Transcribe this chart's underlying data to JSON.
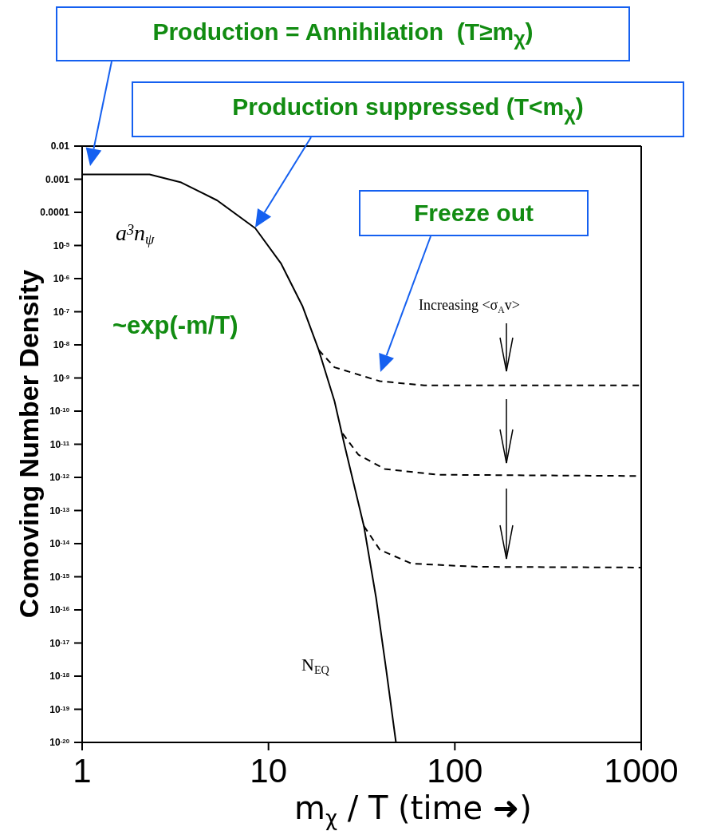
{
  "chart_data": {
    "type": "line",
    "xlabel": "m$_{χ}$ / T (time ➜)",
    "ylabel": "Comoving Number Density",
    "log": "xy",
    "marker": "none",
    "xlim": [
      1,
      1000
    ],
    "xticks": [
      1,
      10,
      100,
      1000
    ],
    "ylim": [
      1e-20,
      0.01
    ],
    "yticks": [
      0.01,
      0.001,
      0.0001,
      {
        "value": 1e-05,
        "label": "10$^{-5}$"
      },
      {
        "value": 1e-06,
        "label": "10$^{-6}$"
      },
      {
        "value": 1e-07,
        "label": "10$^{-7}$"
      },
      {
        "value": 1e-08,
        "label": "10$^{-8}$"
      },
      {
        "value": 1e-09,
        "label": "10$^{-9}$"
      },
      {
        "value": 1e-10,
        "label": "10$^{-10}$"
      },
      {
        "value": 1e-11,
        "label": "10$^{-11}$"
      },
      {
        "value": 1e-12,
        "label": "10$^{-12}$"
      },
      {
        "value": 1e-13,
        "label": "10$^{-13}$"
      },
      {
        "value": 1e-14,
        "label": "10$^{-14}$"
      },
      {
        "value": 1e-15,
        "label": "10$^{-15}$"
      },
      {
        "value": 1e-16,
        "label": "10$^{-16}$"
      },
      {
        "value": 1e-17,
        "label": "10$^{-17}$"
      },
      {
        "value": 1e-18,
        "label": "10$^{-18}$"
      },
      {
        "value": 1e-19,
        "label": "10$^{-19}$"
      },
      {
        "value": 1e-20,
        "label": "10$^{-20}$"
      }
    ],
    "series": [
      {
        "name": "N$_{EQ}$",
        "color": "#000000",
        "line_style": "solid",
        "x": [
          1,
          2.3,
          3.4,
          5.3,
          8.5,
          11.7,
          15.2,
          18.6,
          22.6,
          25.7,
          32.5,
          37.8,
          42.8,
          48.3
        ],
        "values": [
          0.0014,
          0.0014,
          0.0008,
          0.00023,
          3.3e-05,
          2.8e-06,
          1.5e-07,
          7e-09,
          2e-10,
          8.5e-12,
          3.4e-14,
          2.3e-16,
          1.6e-18,
          1e-20
        ]
      },
      {
        "color": "#000000",
        "line_style": "dashed",
        "x": [
          18.6,
          22.6,
          39.6,
          68.5,
          1000
        ],
        "values": [
          7e-09,
          2.1e-09,
          8e-10,
          6e-10,
          6e-10
        ]
      },
      {
        "color": "#000000",
        "line_style": "dashed",
        "x": [
          25,
          30.4,
          42,
          81,
          1000
        ],
        "values": [
          2.1e-11,
          4.8e-12,
          1.8e-12,
          1.2e-12,
          1.1e-12
        ]
      },
      {
        "color": "#000000",
        "line_style": "dashed",
        "x": [
          32.5,
          39.6,
          58.6,
          133,
          1000
        ],
        "values": [
          3.4e-14,
          6.5e-15,
          2.5e-15,
          2e-15,
          1.9e-15
        ]
      }
    ],
    "annotations": [
      "Production = Annihilation  (T≥m$_{χ}$)",
      "Production suppressed (T<m$_{χ}$)",
      "Freeze out",
      "a$^{3}$n$_{ψ}$",
      "~exp(-m/T)",
      "Increasing <σ$_{A}$v>"
    ]
  }
}
